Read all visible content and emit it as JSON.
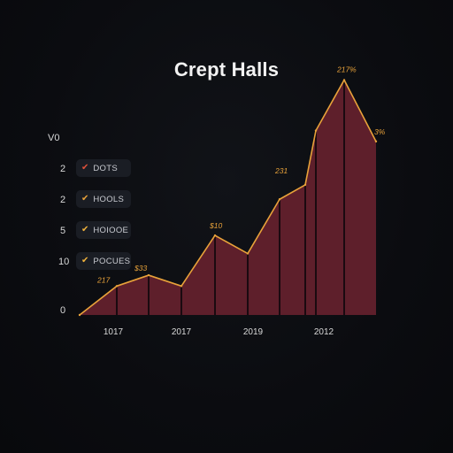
{
  "chart_data": {
    "type": "area",
    "title": "Crept Halls",
    "xlabel": "",
    "ylabel": "",
    "x_tick_labels": [
      "1017",
      "2017",
      "2019",
      "2012"
    ],
    "y_tick_labels": [
      "V0",
      "2",
      "2",
      "5",
      "10",
      "0"
    ],
    "legend": {
      "placement": "left",
      "entries": [
        {
          "label": "DOTS",
          "check_color": "#e0513a"
        },
        {
          "label": "HOOLS",
          "check_color": "#e8a23a"
        },
        {
          "label": "HOIOOE",
          "check_color": "#f0b23c"
        },
        {
          "label": "POCUES",
          "check_color": "#f0b23c"
        }
      ]
    },
    "series": [
      {
        "values": [
          0,
          8,
          11,
          8,
          22,
          17,
          32,
          36,
          51,
          65,
          48
        ]
      }
    ],
    "ylim": [
      0,
      70
    ],
    "data_labels": [
      {
        "index": 1,
        "text": "217"
      },
      {
        "index": 2,
        "text": "$33"
      },
      {
        "index": 4,
        "text": "$10"
      },
      {
        "index": 7,
        "text": "231"
      },
      {
        "index": 9,
        "text": "217%"
      },
      {
        "index": 10,
        "text": "3%"
      }
    ],
    "grid": false,
    "colors": {
      "fill": "#5e1f2b",
      "line": "#e8a23a",
      "divider": "#1a0a10",
      "label": "#e8a23a"
    }
  }
}
